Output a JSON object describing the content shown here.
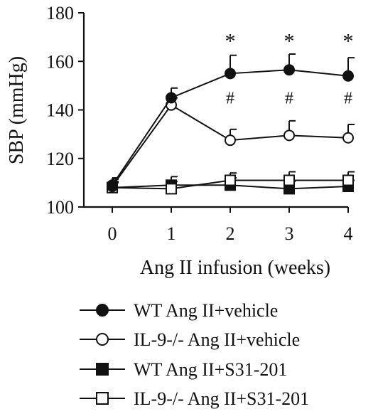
{
  "chart_data": {
    "type": "line",
    "title": "",
    "xlabel": "Ang II infusion (weeks)",
    "ylabel": "SBP (mmHg)",
    "xlim": [
      0,
      4
    ],
    "ylim": [
      100,
      180
    ],
    "x": [
      0,
      1,
      2,
      3,
      4
    ],
    "xticks": [
      "0",
      "1",
      "2",
      "3",
      "4"
    ],
    "yticks": [
      "100",
      "120",
      "140",
      "160",
      "180"
    ],
    "grid": false,
    "legend_position": "bottom",
    "colors": {
      "ink": "#111111",
      "background": "#ffffff"
    },
    "series": [
      {
        "name": "WT Ang II+vehicle",
        "marker": "filled-circle",
        "values": [
          109,
          145,
          155,
          156.5,
          154
        ],
        "errors": [
          3,
          4,
          7.5,
          6.5,
          7.5
        ]
      },
      {
        "name": "IL-9-/- Ang II+vehicle",
        "marker": "open-circle",
        "values": [
          108.5,
          142,
          127.5,
          129.5,
          128.5
        ],
        "errors": [
          3,
          3,
          4.5,
          6,
          5.5
        ]
      },
      {
        "name": "WT Ang II+S31-201",
        "marker": "filled-square",
        "values": [
          108,
          109,
          109,
          107.5,
          108.5
        ],
        "errors": [
          2,
          3.5,
          3,
          3,
          2.5
        ]
      },
      {
        "name": "IL-9-/- Ang II+S31-201",
        "marker": "open-square",
        "values": [
          108,
          107.5,
          111,
          111,
          111
        ],
        "errors": [
          2.5,
          3,
          3,
          3.5,
          3.5
        ]
      }
    ],
    "annotations": [
      {
        "text": "*",
        "x": 2,
        "y": 169
      },
      {
        "text": "*",
        "x": 3,
        "y": 169
      },
      {
        "text": "*",
        "x": 4,
        "y": 169
      },
      {
        "text": "#",
        "x": 2,
        "y": 145
      },
      {
        "text": "#",
        "x": 3,
        "y": 145
      },
      {
        "text": "#",
        "x": 4,
        "y": 145
      }
    ]
  }
}
